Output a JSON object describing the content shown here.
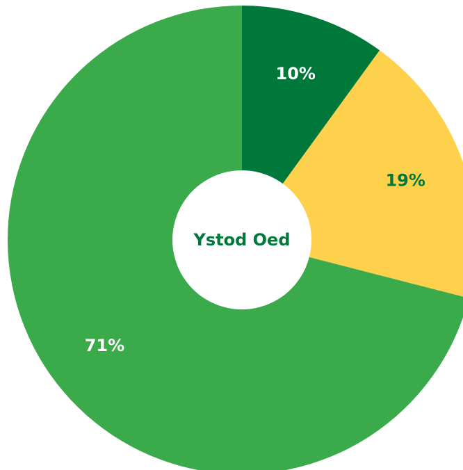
{
  "chart_data": {
    "type": "donut",
    "center_label": "Ystod Oed",
    "categories": [
      null,
      null,
      null
    ],
    "values": [
      10,
      19,
      71
    ],
    "value_labels": [
      "10%",
      "19%",
      "71%"
    ],
    "colors": [
      "#00783a",
      "#fdd14c",
      "#3aaa4a"
    ],
    "label_colors": [
      "#ffffff",
      "#00783a",
      "#ffffff"
    ]
  }
}
